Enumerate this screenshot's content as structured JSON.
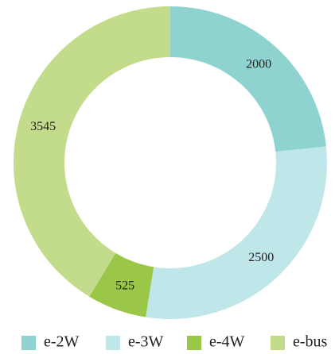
{
  "chart_data": {
    "type": "donut",
    "categories": [
      "e-2W",
      "e-3W",
      "e-4W",
      "e-bus"
    ],
    "values": [
      2000,
      2500,
      525,
      3545
    ],
    "colors": [
      "#8ed3cf",
      "#bfe6e9",
      "#9ac748",
      "#c3dc8b"
    ],
    "legend": "bottom"
  }
}
